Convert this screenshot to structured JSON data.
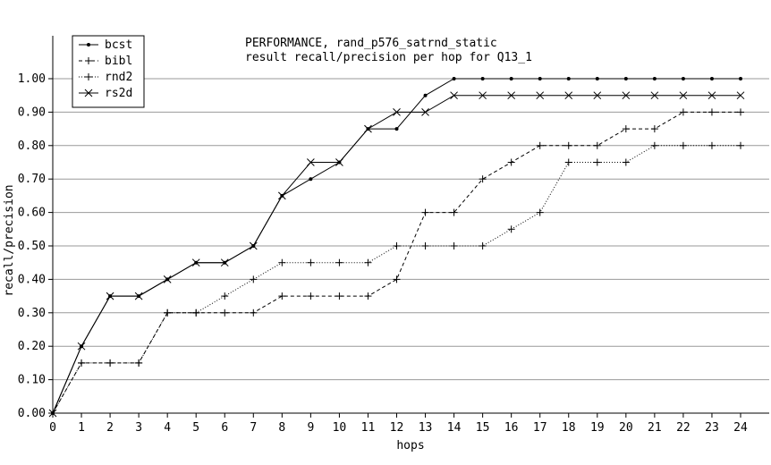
{
  "chart_data": {
    "type": "line",
    "title": "PERFORMANCE, rand_p576_satrnd_static",
    "subtitle": "result recall/precision per hop for Q13_1",
    "xlabel": "hops",
    "ylabel": "recall/precision",
    "xlim": [
      0,
      24
    ],
    "ylim": [
      0,
      1.05
    ],
    "grid": "horizontal",
    "legend_position": "top-left",
    "x": [
      0,
      1,
      2,
      3,
      4,
      5,
      6,
      7,
      8,
      9,
      10,
      11,
      12,
      13,
      14,
      15,
      16,
      17,
      18,
      19,
      20,
      21,
      22,
      23,
      24
    ],
    "x_ticks": [
      "0",
      "1",
      "2",
      "3",
      "4",
      "5",
      "6",
      "7",
      "8",
      "9",
      "10",
      "11",
      "12",
      "13",
      "14",
      "15",
      "16",
      "17",
      "18",
      "19",
      "20",
      "21",
      "22",
      "23",
      "24"
    ],
    "y_ticks": [
      "0.00",
      "0.10",
      "0.20",
      "0.30",
      "0.40",
      "0.50",
      "0.60",
      "0.70",
      "0.80",
      "0.90",
      "1.00"
    ],
    "series": [
      {
        "name": "bcst",
        "marker": "dot",
        "dash": "solid",
        "values": [
          0,
          0.2,
          0.35,
          0.35,
          0.4,
          0.45,
          0.45,
          0.5,
          0.65,
          0.7,
          0.75,
          0.85,
          0.85,
          0.95,
          1.0,
          1.0,
          1.0,
          1.0,
          1.0,
          1.0,
          1.0,
          1.0,
          1.0,
          1.0,
          1.0
        ]
      },
      {
        "name": "bibl",
        "marker": "plus",
        "dash": "dashed",
        "values": [
          0,
          0.15,
          0.15,
          0.15,
          0.3,
          0.3,
          0.3,
          0.3,
          0.35,
          0.35,
          0.35,
          0.35,
          0.4,
          0.6,
          0.6,
          0.7,
          0.75,
          0.8,
          0.8,
          0.8,
          0.85,
          0.85,
          0.9,
          0.9,
          0.9
        ]
      },
      {
        "name": "rnd2",
        "marker": "plus",
        "dash": "dotted",
        "values": [
          0,
          0.15,
          0.15,
          0.15,
          0.3,
          0.3,
          0.35,
          0.4,
          0.45,
          0.45,
          0.45,
          0.45,
          0.5,
          0.5,
          0.5,
          0.5,
          0.55,
          0.6,
          0.75,
          0.75,
          0.75,
          0.8,
          0.8,
          0.8,
          0.8
        ]
      },
      {
        "name": "rs2d",
        "marker": "cross",
        "dash": "solid",
        "values": [
          0,
          0.2,
          0.35,
          0.35,
          0.4,
          0.45,
          0.45,
          0.5,
          0.65,
          0.75,
          0.75,
          0.85,
          0.9,
          0.9,
          0.95,
          0.95,
          0.95,
          0.95,
          0.95,
          0.95,
          0.95,
          0.95,
          0.95,
          0.95,
          0.95
        ]
      }
    ]
  }
}
